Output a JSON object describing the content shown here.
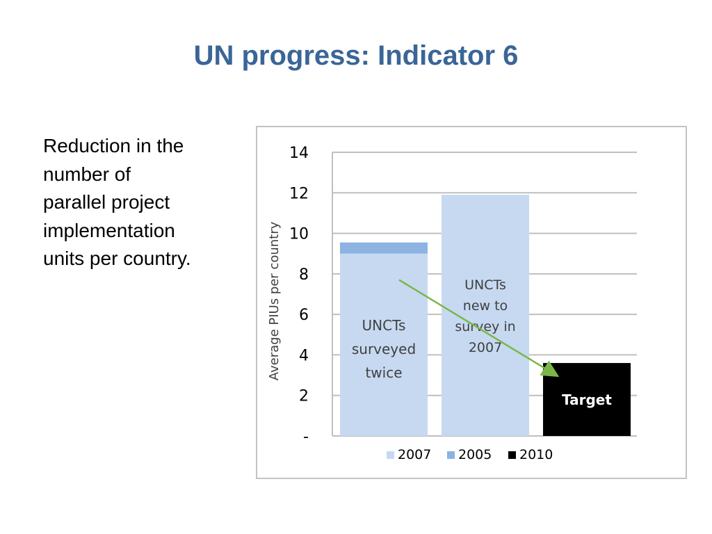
{
  "slide": {
    "title": "UN progress: Indicator 6",
    "description_lines": [
      "Reduction in the",
      "number of",
      "parallel project",
      "implementation",
      "units per country."
    ]
  },
  "chart_data": {
    "type": "bar",
    "stacked": true,
    "ylabel": "Average PIUs per country",
    "ylim": [
      0,
      14
    ],
    "yticks": [
      {
        "value": 0,
        "label": "-"
      },
      {
        "value": 2,
        "label": "2"
      },
      {
        "value": 4,
        "label": "4"
      },
      {
        "value": 6,
        "label": "6"
      },
      {
        "value": 8,
        "label": "8"
      },
      {
        "value": 10,
        "label": "10"
      },
      {
        "value": 12,
        "label": "12"
      },
      {
        "value": 14,
        "label": "14"
      }
    ],
    "grid": true,
    "legend_position": "bottom",
    "series": [
      {
        "name": "2007",
        "color": "#c6d9f1"
      },
      {
        "name": "2005",
        "color": "#8db3e2"
      },
      {
        "name": "2010",
        "color": "#000000"
      }
    ],
    "bars": [
      {
        "label_lines": [
          "UNCTs",
          "surveyed",
          "twice"
        ],
        "segments": [
          {
            "series": "2007",
            "value": 9.0
          },
          {
            "series": "2005",
            "value": 0.55
          }
        ]
      },
      {
        "label_lines": [
          "UNCTs",
          "new to",
          "survey in",
          "2007"
        ],
        "segments": [
          {
            "series": "2007",
            "value": 11.9
          }
        ]
      },
      {
        "label_lines": [
          "Target"
        ],
        "segments": [
          {
            "series": "2010",
            "value": 3.6
          }
        ]
      }
    ],
    "annotation_arrow": {
      "color": "#7ab648",
      "from": {
        "bar": 0,
        "value": 7.7
      },
      "to": {
        "bar": 2,
        "value": 3.0
      }
    }
  }
}
